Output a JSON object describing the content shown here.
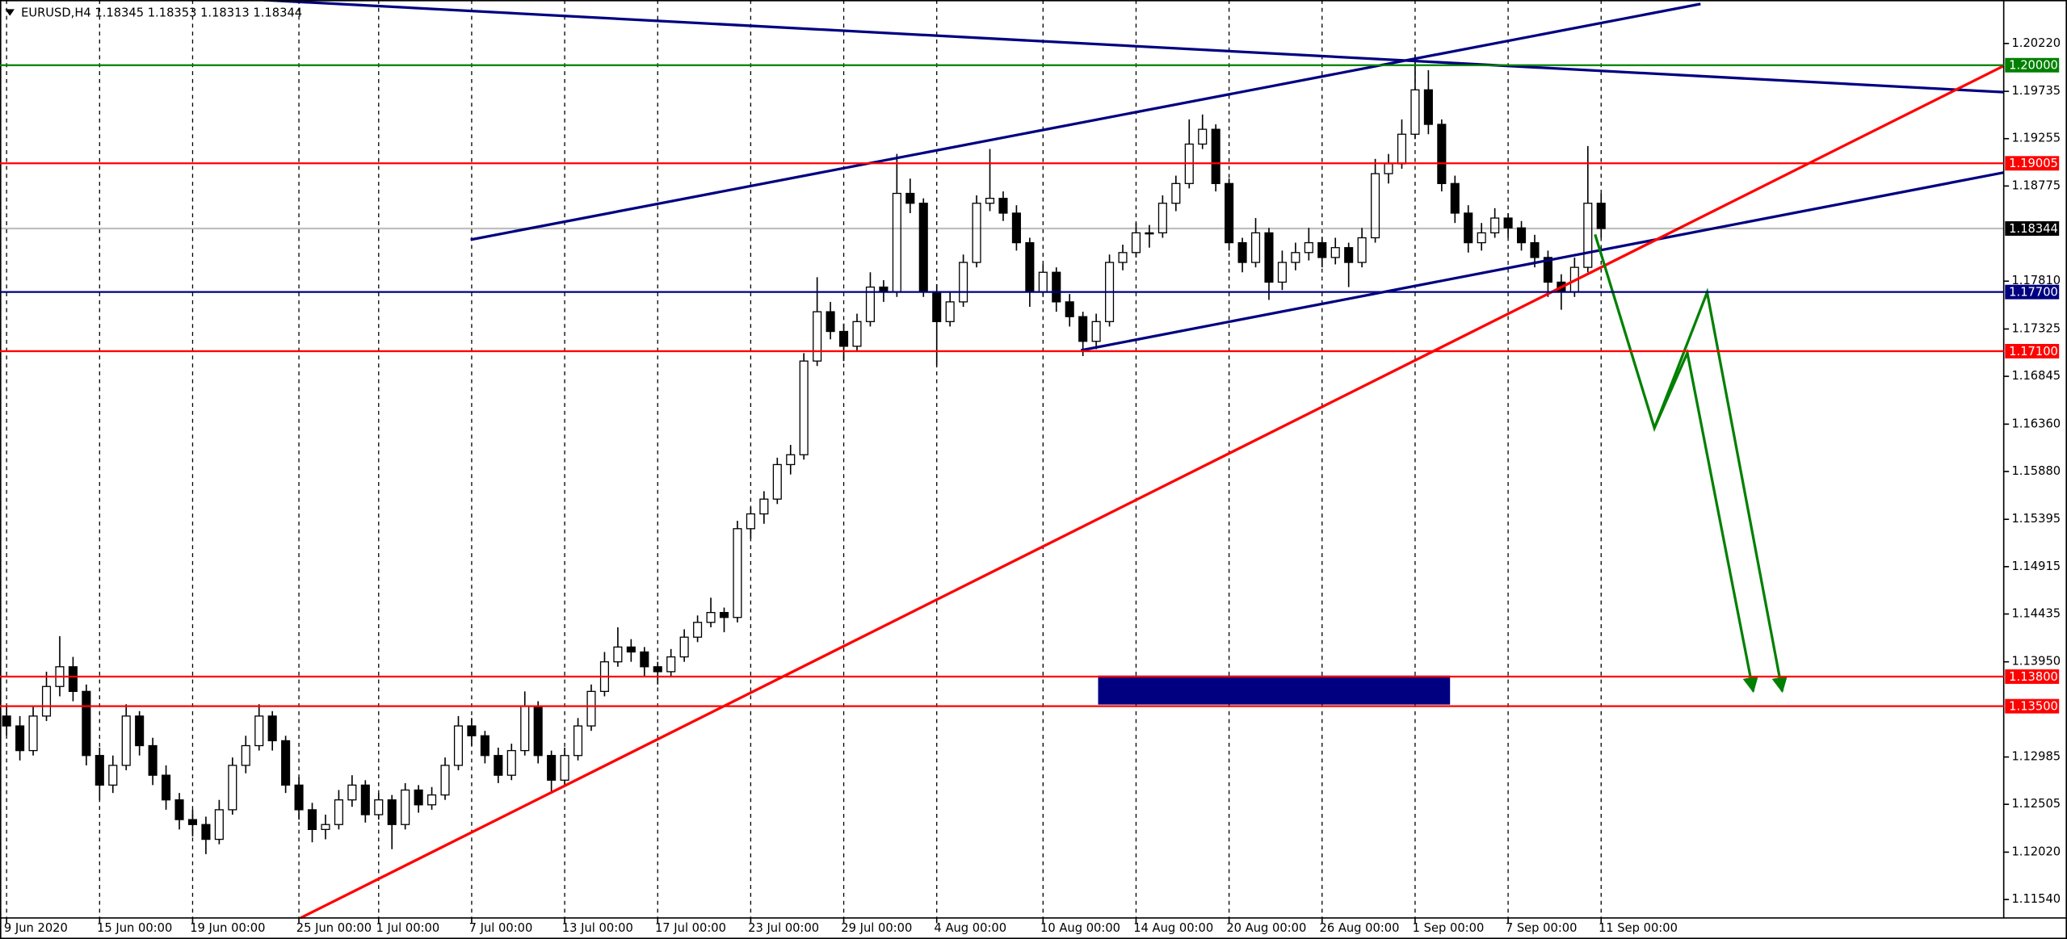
{
  "chart_data": {
    "type": "candlestick",
    "title": "EURUSD,H4  1.18345 1.18353 1.18313 1.18344",
    "ylim": [
      1.11353,
      1.20621
    ],
    "yticks": [
      {
        "value": 1.2022,
        "label": "1.20220"
      },
      1.19735,
      1.19255,
      1.18775,
      {
        "value": 1.1781,
        "label": "1.17810"
      },
      1.17325,
      1.16845,
      {
        "value": 1.1636,
        "label": "1.16360"
      },
      {
        "value": 1.1588,
        "label": "1.15880"
      },
      1.15395,
      1.14915,
      1.14435,
      {
        "value": 1.1395,
        "label": "1.13950"
      },
      1.12985,
      1.12505,
      {
        "value": 1.1202,
        "label": "1.12020"
      },
      {
        "value": 1.1154,
        "label": "1.11540"
      }
    ],
    "xticks": [
      {
        "value": 0,
        "label": "9 Jun 2020"
      },
      {
        "value": 7,
        "label": "15 Jun 00:00"
      },
      {
        "value": 14,
        "label": "19 Jun 00:00"
      },
      {
        "value": 22,
        "label": "25 Jun 00:00"
      },
      {
        "value": 28,
        "label": "1 Jul 00:00"
      },
      {
        "value": 35,
        "label": "7 Jul 00:00"
      },
      {
        "value": 42,
        "label": "13 Jul 00:00"
      },
      {
        "value": 49,
        "label": "17 Jul 00:00"
      },
      {
        "value": 56,
        "label": "23 Jul 00:00"
      },
      {
        "value": 63,
        "label": "29 Jul 00:00"
      },
      {
        "value": 70,
        "label": "4 Aug 00:00"
      },
      {
        "value": 78,
        "label": "10 Aug 00:00"
      },
      {
        "value": 85,
        "label": "14 Aug 00:00"
      },
      {
        "value": 92,
        "label": "20 Aug 00:00"
      },
      {
        "value": 99,
        "label": "26 Aug 00:00"
      },
      {
        "value": 106,
        "label": "1 Sep 00:00"
      },
      {
        "value": 113,
        "label": "7 Sep 00:00"
      },
      {
        "value": 120,
        "label": "11 Sep 00:00"
      }
    ],
    "grid": true,
    "levels": [
      {
        "value": 1.2,
        "label": "1.20000",
        "color": "#008000"
      },
      {
        "value": 1.19005,
        "label": "1.19005",
        "color": "#ff0000"
      },
      {
        "value": 1.18344,
        "label": "1.18344",
        "color": "#000000"
      },
      {
        "value": 1.177,
        "label": "1.17700",
        "color": "#000080"
      },
      {
        "value": 1.171,
        "label": "1.17100",
        "color": "#ff0000"
      },
      {
        "value": 1.138,
        "label": "1.13800",
        "color": "#ff0000"
      },
      {
        "value": 1.135,
        "label": "1.13500",
        "color": "#ff0000"
      }
    ],
    "candles": [
      [
        1.134,
        1.135,
        1.132,
        1.133
      ],
      [
        1.133,
        1.134,
        1.1295,
        1.1305
      ],
      [
        1.1305,
        1.135,
        1.13,
        1.134
      ],
      [
        1.134,
        1.1385,
        1.1335,
        1.137
      ],
      [
        1.137,
        1.1421,
        1.136,
        1.139
      ],
      [
        1.139,
        1.14,
        1.1355,
        1.1365
      ],
      [
        1.1365,
        1.1372,
        1.129,
        1.13
      ],
      [
        1.13,
        1.1308,
        1.1255,
        1.127
      ],
      [
        1.127,
        1.13,
        1.1262,
        1.129
      ],
      [
        1.129,
        1.1352,
        1.1285,
        1.134
      ],
      [
        1.134,
        1.1345,
        1.13,
        1.131
      ],
      [
        1.131,
        1.1318,
        1.127,
        1.128
      ],
      [
        1.128,
        1.129,
        1.1245,
        1.1255
      ],
      [
        1.1255,
        1.1262,
        1.1225,
        1.1235
      ],
      [
        1.1235,
        1.1245,
        1.1218,
        1.123
      ],
      [
        1.123,
        1.1238,
        1.12,
        1.1215
      ],
      [
        1.1215,
        1.1255,
        1.121,
        1.1245
      ],
      [
        1.1245,
        1.1298,
        1.124,
        1.129
      ],
      [
        1.129,
        1.132,
        1.1282,
        1.131
      ],
      [
        1.131,
        1.1352,
        1.1305,
        1.134
      ],
      [
        1.134,
        1.1345,
        1.1305,
        1.1315
      ],
      [
        1.1315,
        1.132,
        1.1262,
        1.127
      ],
      [
        1.127,
        1.1278,
        1.1235,
        1.1245
      ],
      [
        1.1245,
        1.1252,
        1.1212,
        1.1225
      ],
      [
        1.1225,
        1.124,
        1.1215,
        1.123
      ],
      [
        1.123,
        1.1265,
        1.1225,
        1.1255
      ],
      [
        1.1255,
        1.128,
        1.1248,
        1.127
      ],
      [
        1.127,
        1.1275,
        1.1232,
        1.124
      ],
      [
        1.124,
        1.1262,
        1.1235,
        1.1255
      ],
      [
        1.1255,
        1.126,
        1.1205,
        1.123
      ],
      [
        1.123,
        1.1272,
        1.1225,
        1.1265
      ],
      [
        1.1265,
        1.127,
        1.1242,
        1.125
      ],
      [
        1.125,
        1.1268,
        1.1245,
        1.126
      ],
      [
        1.126,
        1.1298,
        1.1255,
        1.129
      ],
      [
        1.129,
        1.134,
        1.1285,
        1.133
      ],
      [
        1.133,
        1.1338,
        1.131,
        1.132
      ],
      [
        1.132,
        1.1325,
        1.1292,
        1.13
      ],
      [
        1.13,
        1.1308,
        1.1272,
        1.128
      ],
      [
        1.128,
        1.1312,
        1.1275,
        1.1305
      ],
      [
        1.1305,
        1.1365,
        1.13,
        1.135
      ],
      [
        1.135,
        1.1355,
        1.1292,
        1.13
      ],
      [
        1.13,
        1.1305,
        1.1262,
        1.1275
      ],
      [
        1.1275,
        1.1308,
        1.127,
        1.13
      ],
      [
        1.13,
        1.1338,
        1.1295,
        1.133
      ],
      [
        1.133,
        1.1372,
        1.1325,
        1.1365
      ],
      [
        1.1365,
        1.1405,
        1.136,
        1.1395
      ],
      [
        1.1395,
        1.143,
        1.139,
        1.141
      ],
      [
        1.141,
        1.1418,
        1.1395,
        1.1405
      ],
      [
        1.1405,
        1.141,
        1.138,
        1.139
      ],
      [
        1.139,
        1.1395,
        1.1372,
        1.1385
      ],
      [
        1.1385,
        1.1408,
        1.138,
        1.14
      ],
      [
        1.14,
        1.1428,
        1.1395,
        1.142
      ],
      [
        1.142,
        1.1442,
        1.1415,
        1.1435
      ],
      [
        1.1435,
        1.146,
        1.143,
        1.1445
      ],
      [
        1.1445,
        1.145,
        1.1425,
        1.144
      ],
      [
        1.144,
        1.1538,
        1.1435,
        1.153
      ],
      [
        1.153,
        1.1552,
        1.152,
        1.1545
      ],
      [
        1.1545,
        1.1568,
        1.1535,
        1.156
      ],
      [
        1.156,
        1.1602,
        1.1555,
        1.1595
      ],
      [
        1.1595,
        1.1615,
        1.1585,
        1.1605
      ],
      [
        1.1605,
        1.1708,
        1.16,
        1.17
      ],
      [
        1.17,
        1.1785,
        1.1695,
        1.175
      ],
      [
        1.175,
        1.176,
        1.1722,
        1.173
      ],
      [
        1.173,
        1.1738,
        1.17,
        1.1715
      ],
      [
        1.1715,
        1.1748,
        1.171,
        1.174
      ],
      [
        1.174,
        1.179,
        1.1735,
        1.1775
      ],
      [
        1.1775,
        1.1782,
        1.176,
        1.177
      ],
      [
        1.177,
        1.191,
        1.1765,
        1.187
      ],
      [
        1.187,
        1.1885,
        1.185,
        1.186
      ],
      [
        1.186,
        1.1865,
        1.1765,
        1.177
      ],
      [
        1.177,
        1.1778,
        1.1695,
        1.174
      ],
      [
        1.174,
        1.177,
        1.1735,
        1.176
      ],
      [
        1.176,
        1.1808,
        1.1755,
        1.18
      ],
      [
        1.18,
        1.1868,
        1.1795,
        1.186
      ],
      [
        1.186,
        1.1915,
        1.1852,
        1.1865
      ],
      [
        1.1865,
        1.1872,
        1.1842,
        1.185
      ],
      [
        1.185,
        1.1858,
        1.1812,
        1.182
      ],
      [
        1.182,
        1.1825,
        1.1755,
        1.177
      ],
      [
        1.177,
        1.1798,
        1.1765,
        1.179
      ],
      [
        1.179,
        1.1795,
        1.175,
        1.176
      ],
      [
        1.176,
        1.1768,
        1.1735,
        1.1745
      ],
      [
        1.1745,
        1.175,
        1.1705,
        1.172
      ],
      [
        1.172,
        1.1748,
        1.1712,
        1.174
      ],
      [
        1.174,
        1.1808,
        1.1735,
        1.18
      ],
      [
        1.18,
        1.1818,
        1.1792,
        1.181
      ],
      [
        1.181,
        1.184,
        1.1805,
        1.183
      ],
      [
        1.183,
        1.1838,
        1.1815,
        1.183
      ],
      [
        1.183,
        1.1868,
        1.1825,
        1.186
      ],
      [
        1.186,
        1.1888,
        1.1852,
        1.188
      ],
      [
        1.188,
        1.1945,
        1.1875,
        1.192
      ],
      [
        1.192,
        1.195,
        1.1915,
        1.1935
      ],
      [
        1.1935,
        1.194,
        1.1872,
        1.188
      ],
      [
        1.188,
        1.1885,
        1.1812,
        1.182
      ],
      [
        1.182,
        1.1825,
        1.179,
        1.18
      ],
      [
        1.18,
        1.1845,
        1.1795,
        1.183
      ],
      [
        1.183,
        1.1835,
        1.1762,
        1.178
      ],
      [
        1.178,
        1.1812,
        1.1772,
        1.18
      ],
      [
        1.18,
        1.182,
        1.1792,
        1.181
      ],
      [
        1.181,
        1.1835,
        1.1802,
        1.182
      ],
      [
        1.182,
        1.1826,
        1.1795,
        1.1805
      ],
      [
        1.1805,
        1.1825,
        1.1798,
        1.1815
      ],
      [
        1.1815,
        1.182,
        1.1775,
        1.18
      ],
      [
        1.18,
        1.1835,
        1.1795,
        1.1825
      ],
      [
        1.1825,
        1.1905,
        1.182,
        1.189
      ],
      [
        1.189,
        1.191,
        1.188,
        1.19
      ],
      [
        1.19,
        1.1945,
        1.1895,
        1.193
      ],
      [
        1.193,
        1.2011,
        1.1925,
        1.1975
      ],
      [
        1.1975,
        1.1995,
        1.193,
        1.194
      ],
      [
        1.194,
        1.1945,
        1.1872,
        1.188
      ],
      [
        1.188,
        1.1888,
        1.184,
        1.185
      ],
      [
        1.185,
        1.1858,
        1.181,
        1.182
      ],
      [
        1.182,
        1.184,
        1.1812,
        1.183
      ],
      [
        1.183,
        1.1855,
        1.1825,
        1.1845
      ],
      [
        1.1845,
        1.185,
        1.1825,
        1.1835
      ],
      [
        1.1835,
        1.1842,
        1.1812,
        1.182
      ],
      [
        1.182,
        1.1828,
        1.1795,
        1.1805
      ],
      [
        1.1805,
        1.1812,
        1.1765,
        1.178
      ],
      [
        1.178,
        1.1788,
        1.1752,
        1.177
      ],
      [
        1.177,
        1.1805,
        1.1765,
        1.1795
      ],
      [
        1.1795,
        1.1918,
        1.179,
        1.186
      ],
      [
        1.186,
        1.187,
        1.1825,
        1.18344
      ]
    ]
  }
}
